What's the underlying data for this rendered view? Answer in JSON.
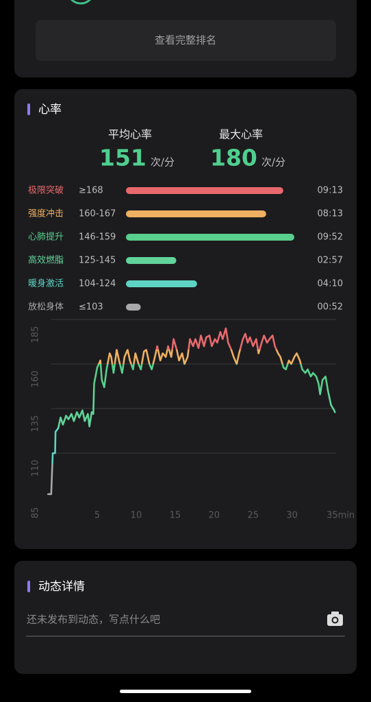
{
  "top_card": {
    "button": "查看完整排名"
  },
  "heart_rate": {
    "title": "心率",
    "stats": [
      {
        "label": "平均心率",
        "value": 151,
        "unit": "次/分"
      },
      {
        "label": "最大心率",
        "value": 180,
        "unit": "次/分"
      }
    ],
    "zones": {
      "type": "bar",
      "categories": [
        "极限突破",
        "强度冲击",
        "心肺提升",
        "高效燃脂",
        "暖身激活",
        "放松身体"
      ],
      "ranges": [
        "≥168",
        "160-167",
        "146-159",
        "125-145",
        "104-124",
        "≤103"
      ],
      "values": [
        553,
        493,
        592,
        177,
        250,
        52
      ],
      "value_labels": [
        "09:13",
        "08:13",
        "09:52",
        "02:57",
        "04:10",
        "00:52"
      ],
      "colors": [
        "#e8696d",
        "#efb062",
        "#58cf8c",
        "#62d39a",
        "#5ed3c3",
        "#a8a8a8"
      ]
    }
  },
  "chart_data": {
    "type": "line",
    "x": [
      -1.3,
      -0.9,
      -0.7,
      -0.4,
      -0.35,
      0,
      0.3,
      0.6,
      1.0,
      1.3,
      1.7,
      2.0,
      2.4,
      2.7,
      3.1,
      3.4,
      3.8,
      4.0,
      4.3,
      4.5,
      4.6,
      5.0,
      5.4,
      5.6,
      5.9,
      6.2,
      6.6,
      6.8,
      7.1,
      7.5,
      7.8,
      8.2,
      8.5,
      8.9,
      9.2,
      9.6,
      9.9,
      10.3,
      10.6,
      11.0,
      11.3,
      11.7,
      12.0,
      12.4,
      12.7,
      13.1,
      13.4,
      13.8,
      14.1,
      14.5,
      14.8,
      15.2,
      15.5,
      15.9,
      16.2,
      16.6,
      16.9,
      17.3,
      17.6,
      18.0,
      18.3,
      18.7,
      19.0,
      19.4,
      19.7,
      20.1,
      20.4,
      20.8,
      21.1,
      21.5,
      21.8,
      22.2,
      22.5,
      22.9,
      23.2,
      23.7,
      24.0,
      24.3,
      24.6,
      25.0,
      25.4,
      25.7,
      26.1,
      26.4,
      26.8,
      27.1,
      27.5,
      27.8,
      28.2,
      28.5,
      28.9,
      29.2,
      29.6,
      29.9,
      30.3,
      30.6,
      31.0,
      31.3,
      31.7,
      32.0,
      32.4,
      32.7,
      33.1,
      33.4,
      33.6,
      33.9,
      34.3,
      34.6,
      35.0,
      35.4,
      35.5
    ],
    "series": [
      {
        "values": [
          87,
          87,
          110,
          110,
          122,
          124,
          130,
          126,
          131,
          129,
          132,
          128,
          133,
          130,
          134,
          128,
          132,
          125,
          133,
          132,
          149,
          158,
          162,
          151,
          147,
          157,
          166,
          164,
          155,
          168,
          162,
          155,
          164,
          168,
          162,
          157,
          166,
          160,
          157,
          167,
          168,
          160,
          157,
          164,
          170,
          162,
          166,
          164,
          170,
          164,
          174,
          168,
          162,
          166,
          160,
          164,
          174,
          170,
          174,
          169,
          176,
          170,
          175,
          176,
          170,
          174,
          172,
          178,
          174,
          180,
          172,
          168,
          164,
          160,
          166,
          174,
          177,
          172,
          175,
          170,
          174,
          166,
          172,
          176,
          172,
          174,
          176,
          170,
          166,
          164,
          158,
          157,
          162,
          160,
          164,
          166,
          162,
          157,
          155,
          157,
          153,
          155,
          153,
          149,
          143,
          151,
          153,
          145,
          137,
          134,
          133
        ]
      }
    ],
    "xlim": [
      -1.5,
      36
    ],
    "ylim": [
      85,
      185
    ],
    "xticks": [
      5,
      10,
      15,
      20,
      25,
      30,
      {
        "value": 35,
        "label": "35min"
      }
    ],
    "yticks": [
      85,
      110,
      135,
      160,
      185
    ],
    "grid": true
  },
  "activity": {
    "title": "动态详情",
    "placeholder": "还未发布到动态，写点什么吧"
  }
}
